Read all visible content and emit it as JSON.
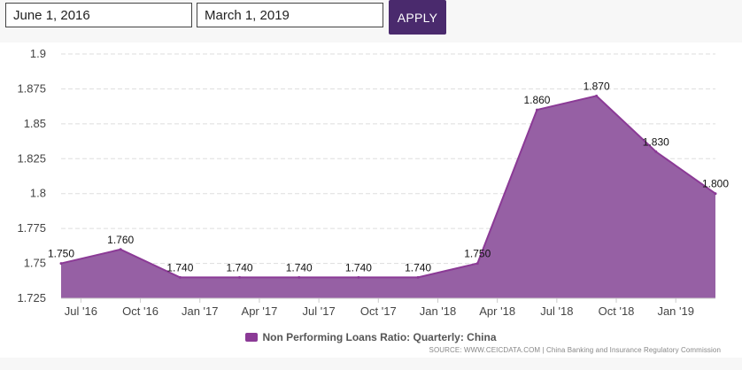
{
  "controls": {
    "start_date": "June 1, 2016",
    "end_date": "March 1, 2019",
    "apply_label": "APPLY"
  },
  "colors": {
    "accent": "#4a2a6d",
    "area_fill": "#9660a4",
    "line": "#8b3a96",
    "grid": "#dddddd"
  },
  "chart_data": {
    "type": "area",
    "categories": [
      "Jun '16",
      "Sep '16",
      "Dec '16",
      "Mar '17",
      "Jun '17",
      "Sep '17",
      "Dec '17",
      "Mar '18",
      "Jun '18",
      "Sep '18",
      "Dec '18",
      "Mar '19"
    ],
    "values": [
      1.75,
      1.76,
      1.74,
      1.74,
      1.74,
      1.74,
      1.74,
      1.75,
      1.86,
      1.87,
      1.83,
      1.8
    ],
    "data_labels": [
      "1.750",
      "1.760",
      "1.740",
      "1.740",
      "1.740",
      "1.740",
      "1.740",
      "1.750",
      "1.860",
      "1.870",
      "1.830",
      "1.800"
    ],
    "x_tick_labels": [
      "Jul '16",
      "Oct '16",
      "Jan '17",
      "Apr '17",
      "Jul '17",
      "Oct '17",
      "Jan '18",
      "Apr '18",
      "Jul '18",
      "Oct '18",
      "Jan '19"
    ],
    "y_ticks": [
      "1.725",
      "1.75",
      "1.775",
      "1.8",
      "1.825",
      "1.85",
      "1.875",
      "1.9"
    ],
    "ylim": [
      1.725,
      1.9
    ],
    "grid": true,
    "legend_position": "bottom-center",
    "legend": "Non Performing Loans Ratio: Quarterly: China",
    "source": "SOURCE: WWW.CEICDATA.COM | China Banking and Insurance Regulatory Commission"
  }
}
